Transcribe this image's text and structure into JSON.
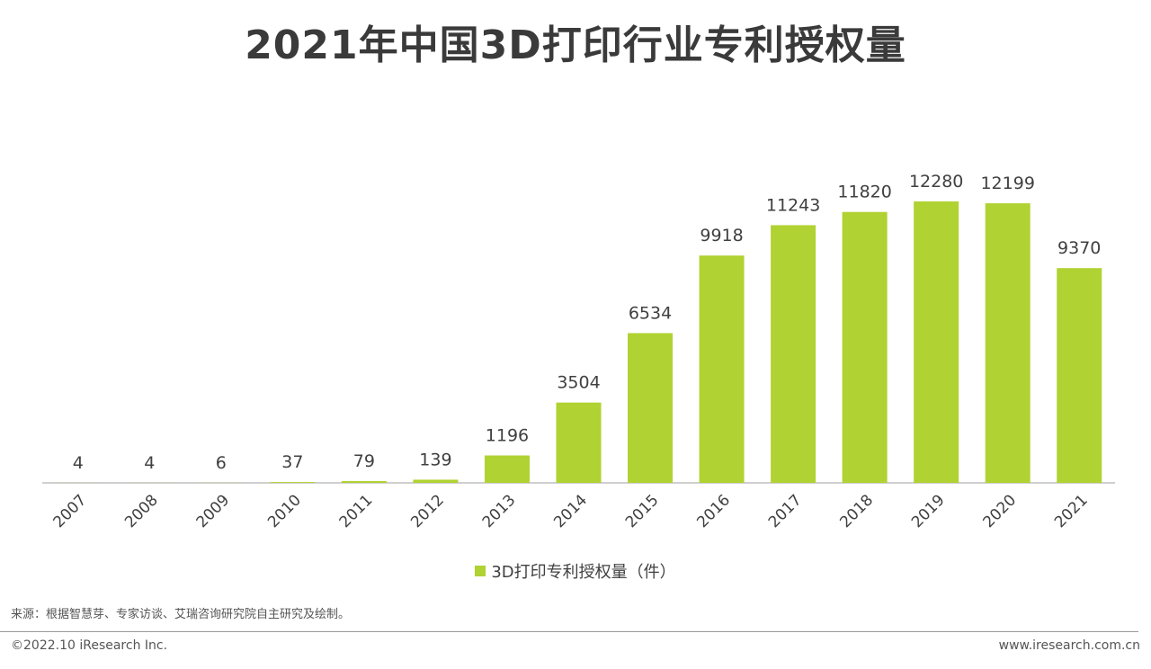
{
  "title": "2021年中国3D打印行业专利授权量",
  "legend_label": "3D打印专利授权量（件）",
  "source_note": "来源：根据智慧芽、专家访谈、艾瑞咨询研究院自主研究及绘制。",
  "copyright": "©2022.10 iResearch Inc.",
  "website": "www.iresearch.com.cn",
  "colors": {
    "bar": "#b0d232",
    "axis": "#bfbfbf",
    "text": "#404040"
  },
  "chart_data": {
    "type": "bar",
    "categories": [
      "2007",
      "2008",
      "2009",
      "2010",
      "2011",
      "2012",
      "2013",
      "2014",
      "2015",
      "2016",
      "2017",
      "2018",
      "2019",
      "2020",
      "2021"
    ],
    "series": [
      {
        "name": "3D打印专利授权量（件）",
        "values": [
          4,
          4,
          6,
          37,
          79,
          139,
          1196,
          3504,
          6534,
          9918,
          11243,
          11820,
          12280,
          12199,
          9370
        ]
      }
    ],
    "title": "2021年中国3D打印行业专利授权量",
    "xlabel": "",
    "ylabel": "",
    "ylim": [
      0,
      12280
    ],
    "grid": false,
    "legend": "bottom"
  }
}
